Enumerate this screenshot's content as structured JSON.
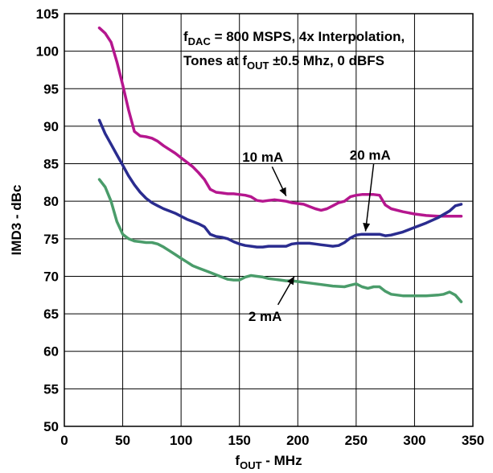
{
  "chart_data": {
    "type": "line",
    "title": "",
    "xlabel": {
      "main": "f",
      "sub": "OUT",
      "rest": " - MHz"
    },
    "ylabel": "IMD3 - dBc",
    "xlim": [
      0,
      350
    ],
    "ylim": [
      50,
      105
    ],
    "xticks": [
      0,
      50,
      100,
      150,
      200,
      250,
      300,
      350
    ],
    "yticks": [
      50,
      55,
      60,
      65,
      70,
      75,
      80,
      85,
      90,
      95,
      100,
      105
    ],
    "grid": true,
    "annotation": {
      "line1": {
        "pre": "f",
        "sub": "DAC",
        "post": " = 800 MSPS, 4x Interpolation,"
      },
      "line2": {
        "pre": "Tones at f",
        "sub": "OUT",
        "post": " ±0.5 Mhz, 0 dBFS"
      }
    },
    "series": [
      {
        "name": "10 mA",
        "color": "#b5168e",
        "x": [
          30,
          35,
          40,
          45,
          50,
          55,
          60,
          65,
          70,
          75,
          80,
          85,
          90,
          95,
          100,
          105,
          110,
          115,
          120,
          125,
          130,
          135,
          140,
          145,
          150,
          155,
          160,
          165,
          170,
          175,
          180,
          185,
          190,
          195,
          200,
          205,
          210,
          215,
          220,
          225,
          230,
          235,
          240,
          245,
          250,
          255,
          260,
          265,
          270,
          275,
          280,
          290,
          300,
          310,
          320,
          330,
          340
        ],
        "y": [
          103.1,
          102.4,
          101.2,
          98.6,
          95.5,
          92.2,
          89.3,
          88.7,
          88.6,
          88.4,
          88.0,
          87.4,
          86.9,
          86.4,
          85.8,
          85.2,
          84.6,
          83.8,
          82.9,
          81.6,
          81.2,
          81.1,
          81.0,
          81.0,
          80.9,
          80.8,
          80.6,
          80.1,
          80.0,
          80.1,
          80.2,
          80.1,
          80.0,
          79.8,
          79.7,
          79.6,
          79.3,
          79.0,
          78.8,
          79.0,
          79.4,
          79.8,
          80.0,
          80.6,
          80.8,
          80.9,
          80.9,
          80.9,
          80.8,
          79.5,
          79.0,
          78.6,
          78.3,
          78.1,
          78.0,
          78.0,
          78.0
        ]
      },
      {
        "name": "20 mA",
        "color": "#2a2c8f",
        "x": [
          30,
          35,
          40,
          45,
          50,
          55,
          60,
          65,
          70,
          75,
          80,
          85,
          90,
          95,
          100,
          105,
          110,
          115,
          120,
          125,
          130,
          135,
          140,
          145,
          150,
          155,
          160,
          165,
          170,
          175,
          180,
          185,
          190,
          195,
          200,
          205,
          210,
          215,
          220,
          225,
          230,
          235,
          240,
          245,
          250,
          255,
          260,
          265,
          270,
          275,
          280,
          290,
          300,
          310,
          320,
          330,
          335,
          340
        ],
        "y": [
          90.8,
          89.0,
          87.6,
          86.2,
          84.8,
          83.4,
          82.2,
          81.2,
          80.4,
          79.8,
          79.4,
          79.0,
          78.7,
          78.4,
          78.0,
          77.6,
          77.3,
          77.0,
          76.6,
          75.6,
          75.3,
          75.2,
          75.0,
          74.6,
          74.3,
          74.1,
          74.0,
          73.9,
          73.9,
          74.0,
          74.0,
          74.0,
          74.0,
          74.3,
          74.4,
          74.4,
          74.4,
          74.3,
          74.2,
          74.1,
          74.0,
          74.1,
          74.5,
          75.1,
          75.5,
          75.6,
          75.6,
          75.6,
          75.6,
          75.4,
          75.5,
          75.9,
          76.5,
          77.1,
          77.8,
          78.7,
          79.4,
          79.6
        ]
      },
      {
        "name": "2 mA",
        "color": "#4a9c6a",
        "x": [
          30,
          35,
          40,
          45,
          50,
          55,
          60,
          65,
          70,
          75,
          80,
          85,
          90,
          95,
          100,
          105,
          110,
          115,
          120,
          125,
          130,
          135,
          140,
          145,
          150,
          155,
          160,
          165,
          170,
          175,
          180,
          185,
          190,
          195,
          200,
          210,
          220,
          230,
          240,
          245,
          250,
          255,
          260,
          265,
          270,
          275,
          280,
          290,
          300,
          310,
          320,
          325,
          330,
          335,
          340
        ],
        "y": [
          82.9,
          81.9,
          80.0,
          77.3,
          75.6,
          75.0,
          74.7,
          74.6,
          74.5,
          74.5,
          74.3,
          73.9,
          73.4,
          72.9,
          72.4,
          71.9,
          71.4,
          71.1,
          70.8,
          70.5,
          70.2,
          69.9,
          69.6,
          69.5,
          69.5,
          69.9,
          70.1,
          70.0,
          69.9,
          69.7,
          69.6,
          69.5,
          69.4,
          69.4,
          69.3,
          69.1,
          68.9,
          68.7,
          68.6,
          68.8,
          69.0,
          68.6,
          68.4,
          68.6,
          68.6,
          68.0,
          67.6,
          67.4,
          67.4,
          67.4,
          67.5,
          67.6,
          67.9,
          67.5,
          66.6
        ]
      }
    ],
    "labels": [
      {
        "text": "10 mA",
        "tx": 170,
        "ty": 85.9,
        "ax": [
          178,
          84.6,
          190,
          80.7
        ]
      },
      {
        "text": "20 mA",
        "tx": 262,
        "ty": 86.2,
        "ax": [
          265,
          85.0,
          258,
          76.0
        ]
      },
      {
        "text": "2 mA",
        "tx": 172,
        "ty": 64.7,
        "ax": [
          183,
          66.2,
          197,
          70.0
        ]
      }
    ]
  }
}
